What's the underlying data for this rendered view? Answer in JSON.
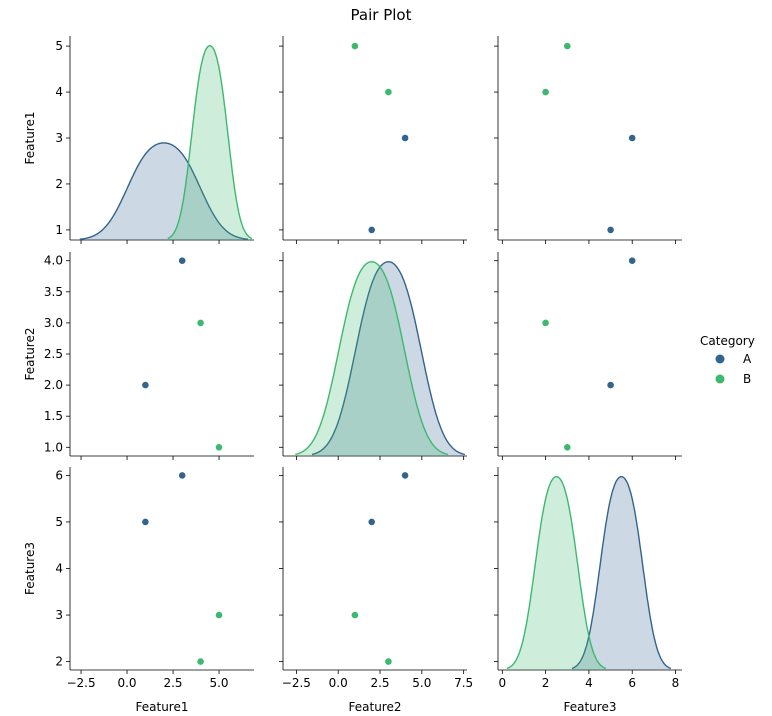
{
  "chart_data": {
    "type": "pairplot",
    "title": "Pair Plot",
    "variables": [
      "Feature1",
      "Feature2",
      "Feature3"
    ],
    "hue": {
      "title": "Category",
      "levels": [
        {
          "name": "A",
          "color": "#32648e"
        },
        {
          "name": "B",
          "color": "#3cb96f"
        }
      ]
    },
    "points": [
      {
        "category": "A",
        "Feature1": 1,
        "Feature2": 2,
        "Feature3": 5
      },
      {
        "category": "A",
        "Feature1": 3,
        "Feature2": 4,
        "Feature3": 6
      },
      {
        "category": "B",
        "Feature1": 4,
        "Feature2": 3,
        "Feature3": 2
      },
      {
        "category": "B",
        "Feature1": 5,
        "Feature2": 1,
        "Feature3": 3
      }
    ],
    "axes": {
      "Feature1": {
        "range": [
          -3.1,
          6.9
        ],
        "ticks": [
          -2.5,
          0,
          2.5,
          5
        ],
        "tick_labels": [
          "−2.5",
          "0.0",
          "2.5",
          "5.0"
        ],
        "y_range": [
          0.78,
          5.22
        ],
        "y_ticks": [
          1,
          2,
          3,
          4,
          5
        ],
        "y_tick_labels": [
          "1",
          "2",
          "3",
          "4",
          "5"
        ]
      },
      "Feature2": {
        "range": [
          -3.3,
          7.7
        ],
        "ticks": [
          -2.5,
          0,
          2.5,
          5,
          7.5
        ],
        "tick_labels": [
          "−2.5",
          "0.0",
          "2.5",
          "5.0",
          "7.5"
        ],
        "y_range": [
          0.86,
          4.14
        ],
        "y_ticks": [
          1,
          1.5,
          2,
          2.5,
          3,
          3.5,
          4
        ],
        "y_tick_labels": [
          "1.0",
          "1.5",
          "2.0",
          "2.5",
          "3.0",
          "3.5",
          "4.0"
        ]
      },
      "Feature3": {
        "range": [
          -0.2,
          8.3
        ],
        "ticks": [
          0,
          2,
          4,
          6,
          8
        ],
        "tick_labels": [
          "0",
          "2",
          "4",
          "6",
          "8"
        ],
        "y_range": [
          1.82,
          6.18
        ],
        "y_ticks": [
          2,
          3,
          4,
          5,
          6
        ],
        "y_tick_labels": [
          "2",
          "3",
          "4",
          "5",
          "6"
        ]
      }
    },
    "diagonal_kde": {
      "bandwidth_factor": 0.8409,
      "cut": 3
    }
  }
}
